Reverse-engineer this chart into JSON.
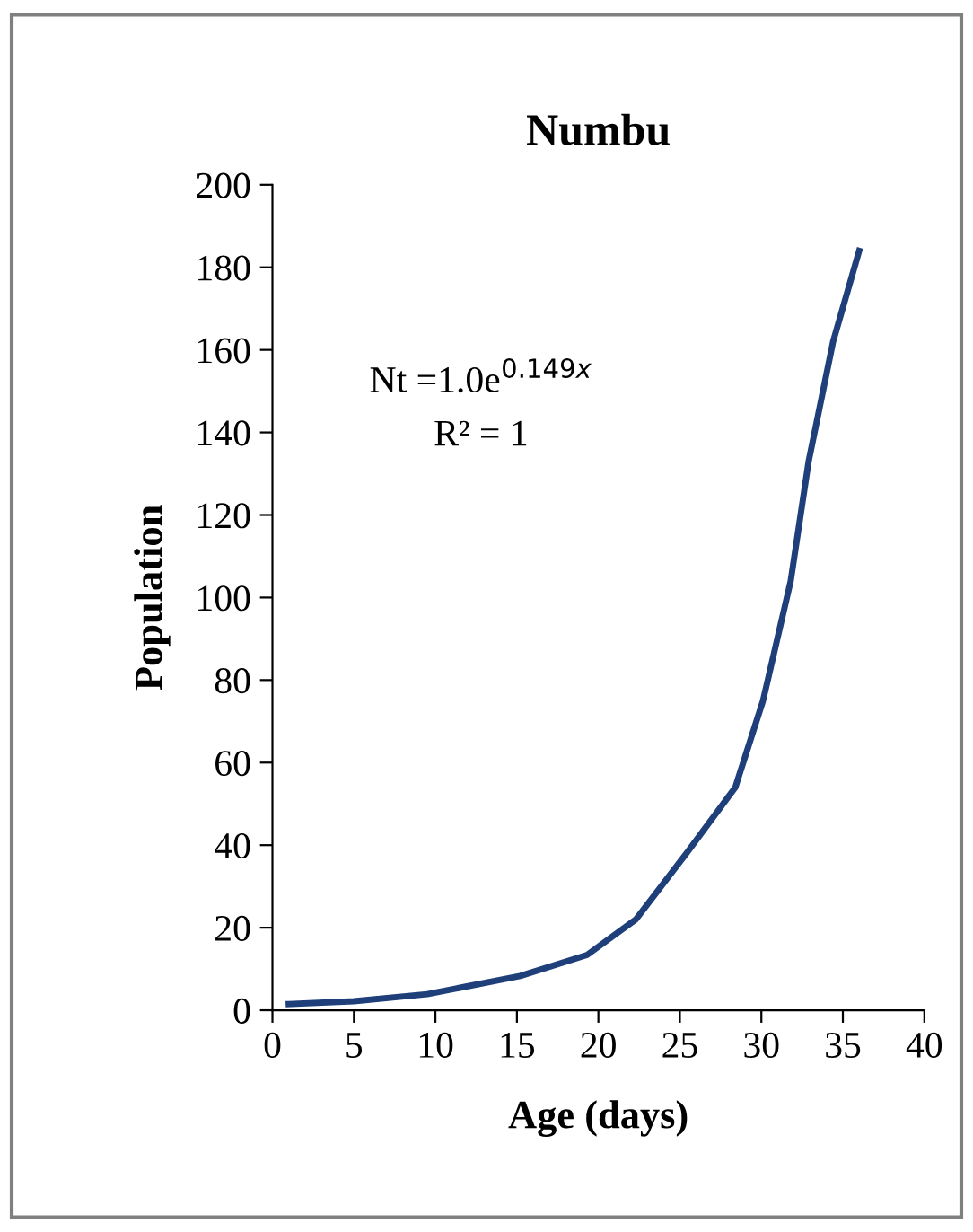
{
  "chart_data": {
    "type": "line",
    "title": "Numbu",
    "xlabel": "Age (days)",
    "ylabel": "Population",
    "x": [
      1,
      5,
      9.5,
      15.2,
      19.3,
      22.3,
      25.4,
      28.4,
      30.1,
      31.8,
      32.9,
      34.4,
      36
    ],
    "series": [
      {
        "color": "#1f3f7a",
        "values": [
          1.5,
          2.2,
          3.9,
          8.3,
          13.4,
          22,
          38,
          54,
          75,
          104,
          133,
          162,
          184
        ]
      }
    ],
    "xlim": [
      0,
      40
    ],
    "xticks": [
      0,
      5,
      10,
      15,
      20,
      25,
      30,
      35,
      40
    ],
    "ylim": [
      0,
      200
    ],
    "yticks": [
      0,
      20,
      40,
      60,
      80,
      100,
      120,
      140,
      160,
      180,
      200
    ],
    "grid": false,
    "legend": false,
    "marker": "none",
    "line_style": "solid",
    "annotations": [
      "Nt =1.0e$^{0.149x}$",
      "R² = 1"
    ]
  }
}
